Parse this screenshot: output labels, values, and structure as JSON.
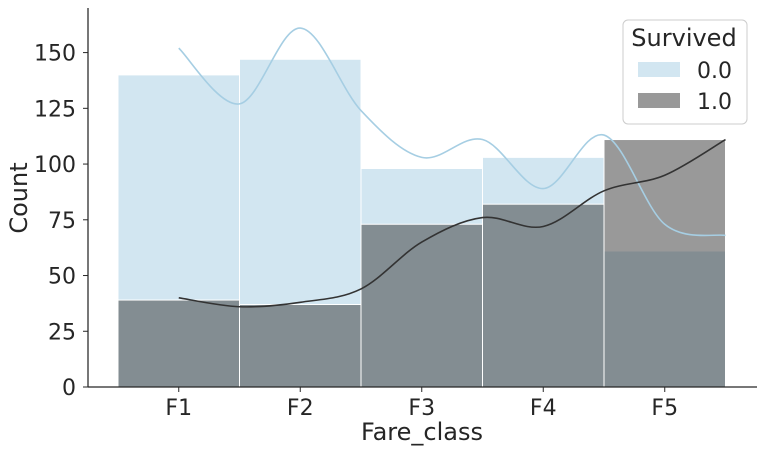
{
  "chart_data": {
    "type": "bar",
    "stacked": "overlay",
    "xlabel": "Fare_class",
    "ylabel": "Count",
    "categories": [
      "F1",
      "F2",
      "F3",
      "F4",
      "F5"
    ],
    "ylim": [
      0,
      170
    ],
    "yticks": [
      0,
      25,
      50,
      75,
      100,
      125,
      150
    ],
    "grid": false,
    "legend": {
      "title": "Survived",
      "placement": "top-right",
      "entries": [
        "0.0",
        "1.0"
      ]
    },
    "series": [
      {
        "name": "0.0",
        "values": [
          140,
          147,
          98,
          103,
          61
        ],
        "color": "#a6cee3",
        "kde": [
          [
            0,
            152
          ],
          [
            0.5,
            127
          ],
          [
            1,
            161
          ],
          [
            1.5,
            124
          ],
          [
            2,
            103
          ],
          [
            2.5,
            111
          ],
          [
            3,
            89
          ],
          [
            3.5,
            113
          ],
          [
            4,
            73
          ],
          [
            4.5,
            68
          ]
        ]
      },
      {
        "name": "1.0",
        "values": [
          39,
          37,
          73,
          82,
          111
        ],
        "color": "#333333",
        "kde": [
          [
            0,
            40
          ],
          [
            0.5,
            36
          ],
          [
            1,
            38
          ],
          [
            1.5,
            44
          ],
          [
            2,
            65
          ],
          [
            2.5,
            76
          ],
          [
            3,
            72
          ],
          [
            3.5,
            88
          ],
          [
            4,
            95
          ],
          [
            4.5,
            111
          ]
        ]
      }
    ]
  }
}
